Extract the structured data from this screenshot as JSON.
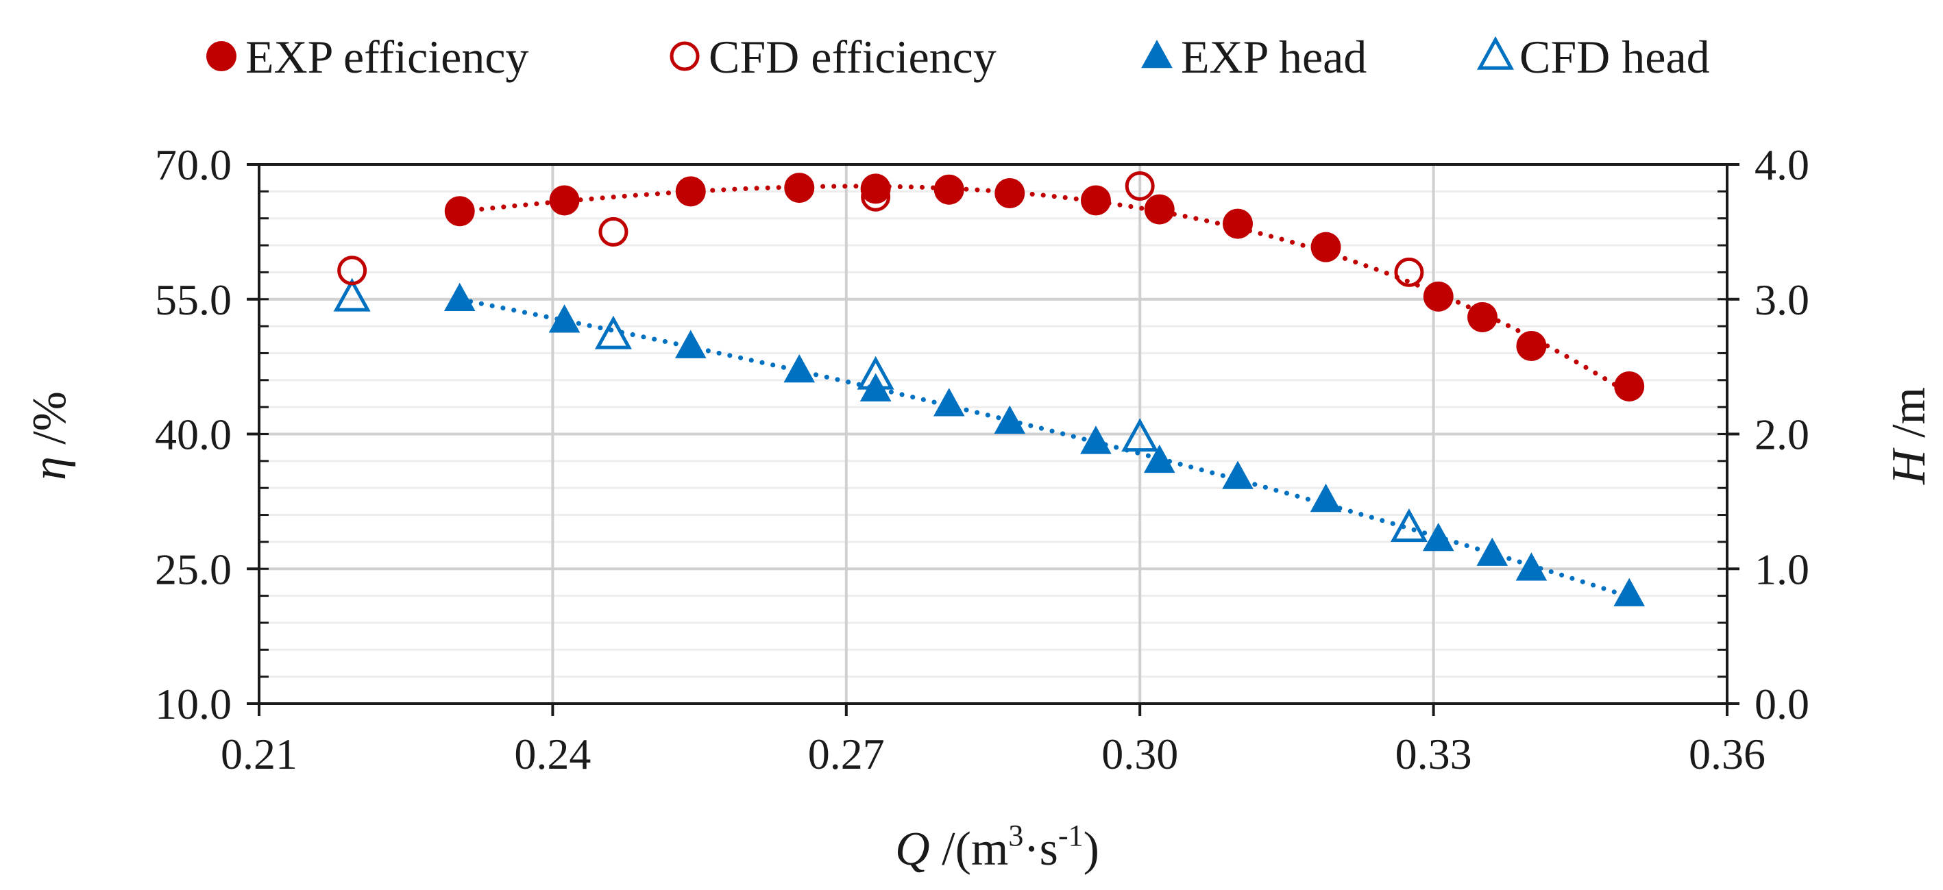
{
  "chart_data": {
    "type": "scatter",
    "title": "",
    "legend_position": "top",
    "grid": true,
    "xlabel": {
      "symbol": "Q",
      "unit_prefix": " /(m",
      "sup1": "3",
      "mid": "·s",
      "sup2": "-1",
      "unit_suffix": ")"
    },
    "ylabel_left": {
      "symbol": "η",
      "unit": " /%"
    },
    "ylabel_right": {
      "symbol": "H",
      "unit": " /m"
    },
    "xlim": [
      0.21,
      0.36
    ],
    "ylim_left": [
      10,
      70
    ],
    "ylim_right": [
      0,
      4
    ],
    "x_ticks": [
      "0.21",
      "0.24",
      "0.27",
      "0.30",
      "0.33",
      "0.36"
    ],
    "y_left_ticks": [
      "10.0",
      "25.0",
      "40.0",
      "55.0",
      "70.0"
    ],
    "y_right_ticks": [
      "0.0",
      "1.0",
      "2.0",
      "3.0",
      "4.0"
    ],
    "series": [
      {
        "name": "EXP efficiency",
        "axis": "left",
        "marker": "circle-filled",
        "color": "#c00000",
        "trendline": "dotted",
        "points": [
          [
            0.2305,
            64.8
          ],
          [
            0.2412,
            66.0
          ],
          [
            0.2541,
            67.0
          ],
          [
            0.2652,
            67.4
          ],
          [
            0.273,
            67.3
          ],
          [
            0.2805,
            67.2
          ],
          [
            0.2867,
            66.8
          ],
          [
            0.2955,
            66.0
          ],
          [
            0.302,
            65.0
          ],
          [
            0.31,
            63.4
          ],
          [
            0.319,
            60.8
          ],
          [
            0.3305,
            55.3
          ],
          [
            0.335,
            53.0
          ],
          [
            0.34,
            49.8
          ],
          [
            0.35,
            45.3
          ]
        ]
      },
      {
        "name": "CFD efficiency",
        "axis": "left",
        "marker": "circle-open",
        "color": "#c00000",
        "points": [
          [
            0.2195,
            58.2
          ],
          [
            0.2462,
            62.5
          ],
          [
            0.273,
            66.4
          ],
          [
            0.3,
            67.6
          ],
          [
            0.3275,
            58.0
          ]
        ]
      },
      {
        "name": "EXP head",
        "axis": "right",
        "marker": "triangle-filled",
        "color": "#0070c0",
        "trendline": "dotted",
        "points": [
          [
            0.2305,
            3.0
          ],
          [
            0.2412,
            2.84
          ],
          [
            0.2541,
            2.65
          ],
          [
            0.2652,
            2.47
          ],
          [
            0.273,
            2.33
          ],
          [
            0.2805,
            2.22
          ],
          [
            0.2867,
            2.09
          ],
          [
            0.2955,
            1.94
          ],
          [
            0.302,
            1.8
          ],
          [
            0.31,
            1.68
          ],
          [
            0.319,
            1.51
          ],
          [
            0.3305,
            1.22
          ],
          [
            0.336,
            1.11
          ],
          [
            0.34,
            1.0
          ],
          [
            0.35,
            0.81
          ]
        ]
      },
      {
        "name": "CFD head",
        "axis": "right",
        "marker": "triangle-open",
        "color": "#0070c0",
        "points": [
          [
            0.2195,
            3.01
          ],
          [
            0.2462,
            2.73
          ],
          [
            0.273,
            2.43
          ],
          [
            0.3,
            1.97
          ],
          [
            0.3275,
            1.3
          ]
        ]
      }
    ]
  }
}
